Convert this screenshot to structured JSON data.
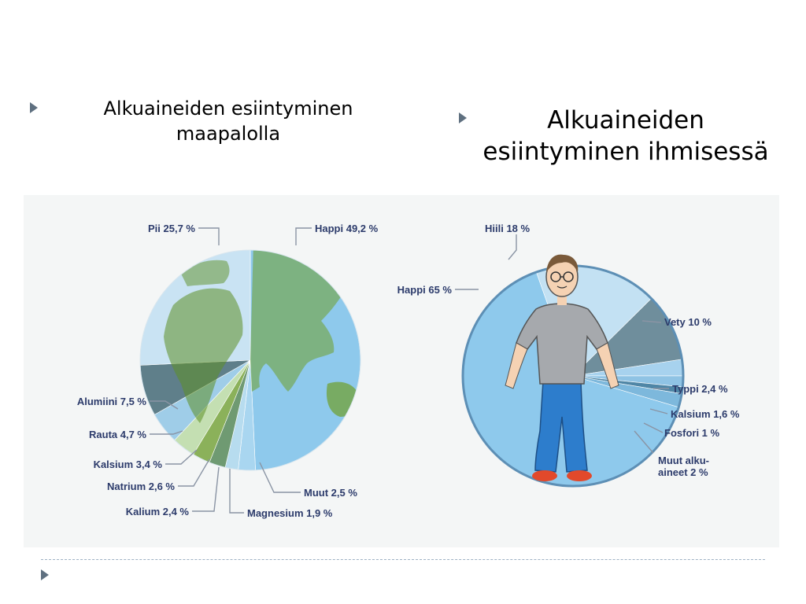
{
  "headings": {
    "left": "Alkuaineiden esiintyminen maapalolla",
    "right": "Alkuaineiden esiintyminen ihmisessä"
  },
  "colors": {
    "ocean": "#8ec9ec",
    "land": "#8fbf3c",
    "pale": "#c9e3f3",
    "dark": "#5f7f8a",
    "label": "#2c3b6b"
  },
  "chart_data": [
    {
      "type": "pie",
      "title": "Alkuaineiden esiintyminen maapalolla",
      "slices": [
        {
          "label": "Happi 49,2 %",
          "value": 49.2
        },
        {
          "label": "Muut 2,5 %",
          "value": 2.5
        },
        {
          "label": "Magnesium 1,9 %",
          "value": 1.9
        },
        {
          "label": "Kalium 2,4 %",
          "value": 2.4
        },
        {
          "label": "Natrium 2,6 %",
          "value": 2.6
        },
        {
          "label": "Kalsium 3,4 %",
          "value": 3.4
        },
        {
          "label": "Rauta 4,7 %",
          "value": 4.7
        },
        {
          "label": "Alumiini 7,5 %",
          "value": 7.5
        },
        {
          "label": "Pii 25,7 %",
          "value": 25.7
        }
      ]
    },
    {
      "type": "pie",
      "title": "Alkuaineiden esiintyminen ihmisessä",
      "slices": [
        {
          "label": "Hiili 18 %",
          "value": 18
        },
        {
          "label": "Vety 10 %",
          "value": 10
        },
        {
          "label": "Typpi 2,4 %",
          "value": 2.4
        },
        {
          "label": "Kalsium 1,6 %",
          "value": 1.6
        },
        {
          "label": "Fosfori 1 %",
          "value": 1
        },
        {
          "label": "Muut alku-aineet 2 %",
          "value": 2
        },
        {
          "label": "Happi 65 %",
          "value": 65
        }
      ]
    }
  ]
}
